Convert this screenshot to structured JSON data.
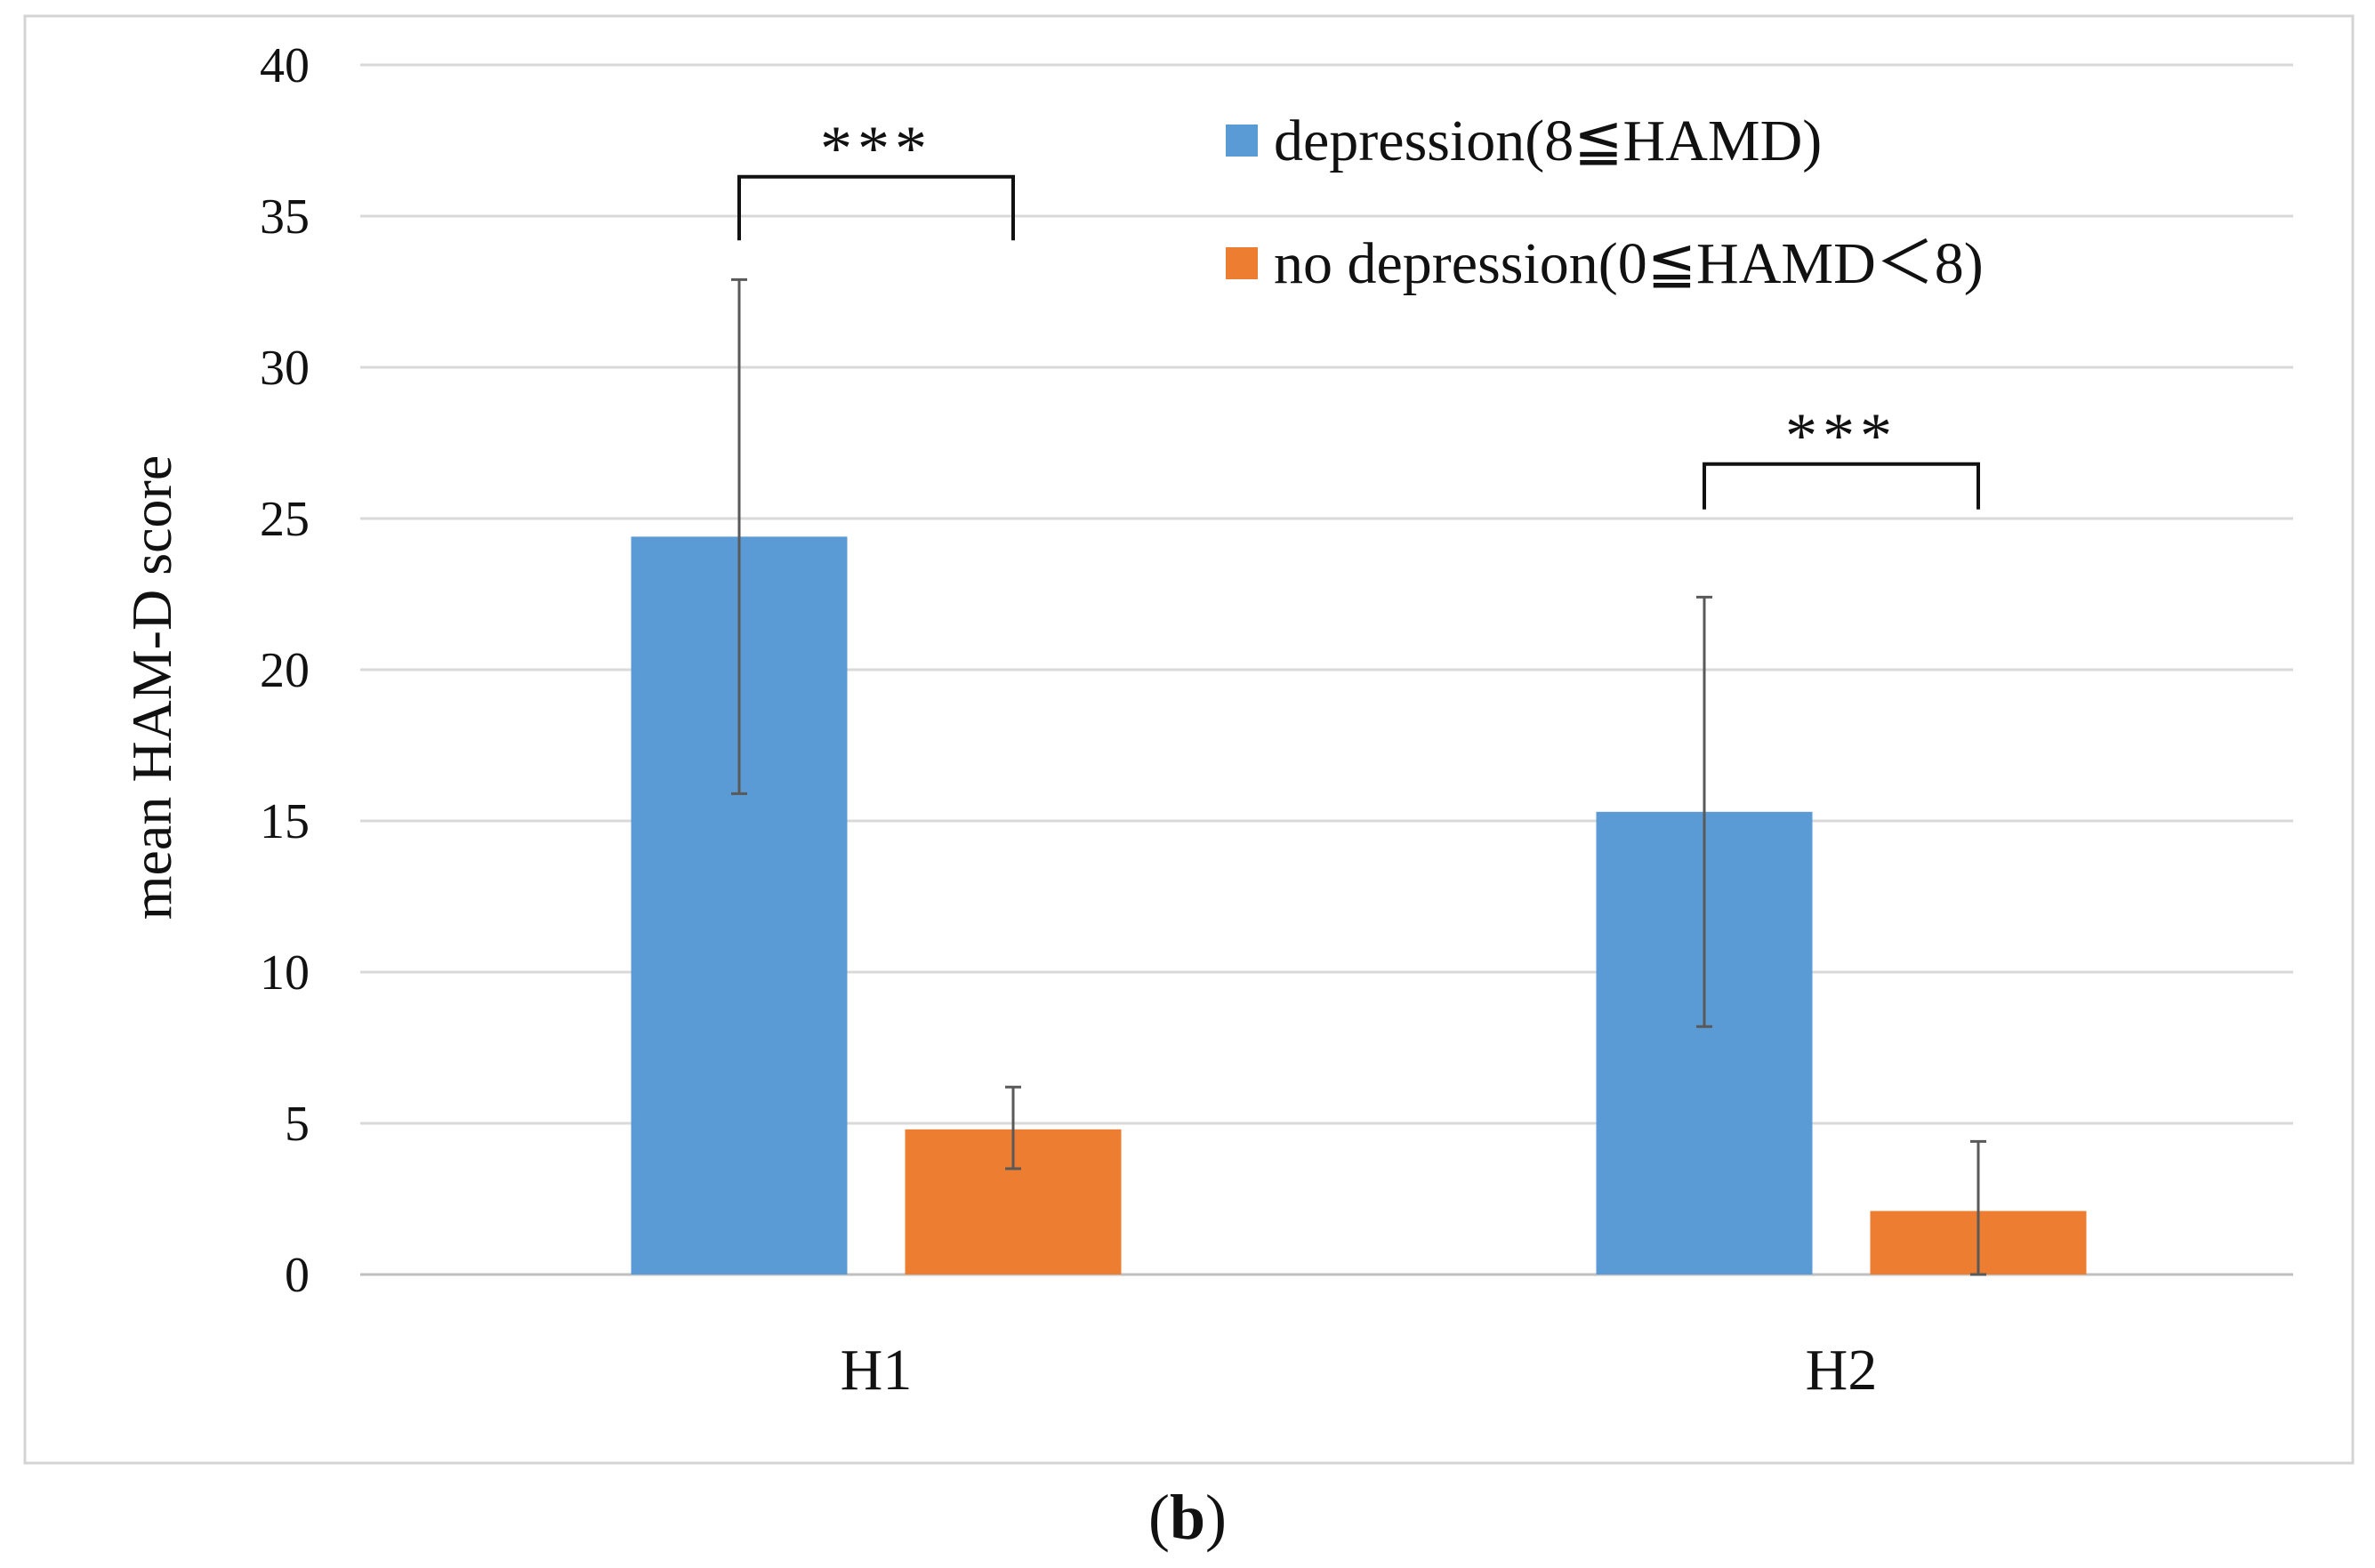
{
  "chart_data": {
    "type": "bar",
    "ylabel": "mean HAM-D score",
    "xlabel": "",
    "ylim": [
      0,
      40
    ],
    "yticks": [
      0,
      5,
      10,
      15,
      20,
      25,
      30,
      35,
      40
    ],
    "grid": true,
    "categories": [
      "H1",
      "H2"
    ],
    "series": [
      {
        "name": "depression(8≦HAMD)",
        "color": "#5B9BD5",
        "values": [
          24.4,
          15.3
        ],
        "error": [
          [
            8.5,
            8.5
          ],
          [
            7.1,
            7.1
          ]
        ]
      },
      {
        "name": "no depression(0≦HAMD＜8)",
        "color": "#ED7D31",
        "values": [
          4.8,
          2.1
        ],
        "error": [
          [
            1.3,
            1.4
          ],
          [
            2.1,
            2.3
          ]
        ]
      }
    ],
    "legend_position": "top-right",
    "significance": [
      {
        "category": "H1",
        "label": "***"
      },
      {
        "category": "H2",
        "label": "***"
      }
    ]
  },
  "panel_label": {
    "open": "(",
    "letter": "b",
    "close": ")"
  }
}
